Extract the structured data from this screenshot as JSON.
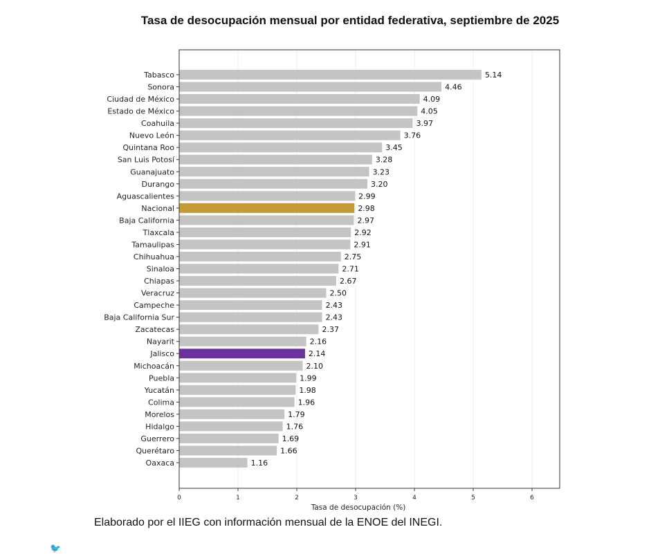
{
  "chart_data": {
    "type": "bar",
    "orientation": "horizontal",
    "title": "Tasa de desocupación mensual por entidad federativa, septiembre de 2025",
    "xlabel": "Tasa de desocupación (%)",
    "ylabel": "",
    "xlim": [
      0,
      6.47
    ],
    "xticks": [
      0,
      1,
      2,
      3,
      4,
      5,
      6
    ],
    "grid": "vertical",
    "categories": [
      "Tabasco",
      "Sonora",
      "Ciudad de México",
      "Estado de México",
      "Coahuila",
      "Nuevo León",
      "Quintana Roo",
      "San Luis Potosí",
      "Guanajuato",
      "Durango",
      "Aguascalientes",
      "Nacional",
      "Baja California",
      "Tlaxcala",
      "Tamaulipas",
      "Chihuahua",
      "Sinaloa",
      "Chiapas",
      "Veracruz",
      "Campeche",
      "Baja California Sur",
      "Zacatecas",
      "Nayarit",
      "Jalisco",
      "Michoacán",
      "Puebla",
      "Yucatán",
      "Colima",
      "Morelos",
      "Hidalgo",
      "Guerrero",
      "Querétaro",
      "Oaxaca"
    ],
    "values": [
      "5.14",
      "4.46",
      "4.09",
      "4.05",
      "3.97",
      "3.76",
      "3.45",
      "3.28",
      "3.23",
      "3.20",
      "2.99",
      "2.98",
      "2.97",
      "2.92",
      "2.91",
      "2.75",
      "2.71",
      "2.67",
      "2.50",
      "2.43",
      "2.43",
      "2.37",
      "2.16",
      "2.14",
      "2.10",
      "1.99",
      "1.98",
      "1.96",
      "1.79",
      "1.76",
      "1.69",
      "1.66",
      "1.16"
    ],
    "colors": {
      "default": "#c4c4c4",
      "Nacional": "#c49a35",
      "Jalisco": "#6a329f"
    }
  },
  "footer": "Elaborado por el IIEG con información mensual de la ENOE del INEGI.",
  "corner_icon": "bird-icon"
}
